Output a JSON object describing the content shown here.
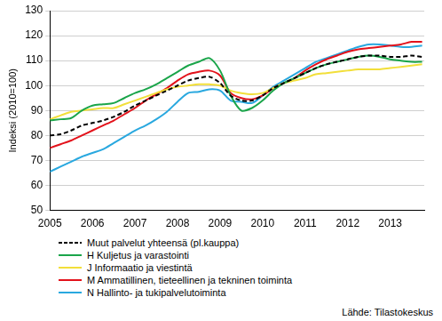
{
  "chart_data": {
    "type": "line",
    "y_label": "Indeksi (2010=100)",
    "annotations": [
      "Lähde: Tilastokeskus"
    ],
    "legend": "bottom",
    "grid": "y",
    "xlim": [
      2005,
      2013.8
    ],
    "xticks": [
      2005,
      2006,
      2007,
      2008,
      2009,
      2010,
      2011,
      2012,
      2013
    ],
    "ylim": [
      50,
      130
    ],
    "yticks": [
      50,
      60,
      70,
      80,
      90,
      100,
      110,
      120,
      130
    ],
    "x": [
      2005,
      2005.25,
      2005.5,
      2005.75,
      2006,
      2006.25,
      2006.5,
      2006.75,
      2007,
      2007.25,
      2007.5,
      2007.75,
      2008,
      2008.25,
      2008.5,
      2008.75,
      2009,
      2009.25,
      2009.5,
      2009.75,
      2010,
      2010.25,
      2010.5,
      2010.75,
      2011,
      2011.25,
      2011.5,
      2011.75,
      2012,
      2012.25,
      2012.5,
      2012.75,
      2013,
      2013.25,
      2013.5,
      2013.75
    ],
    "series": [
      {
        "name": "Muut palvelut yhteensä (pl.kauppa)",
        "color": "#000000",
        "line_style": "dashed",
        "values": [
          80,
          80.5,
          82,
          84,
          85,
          86,
          87.5,
          89.5,
          92,
          94,
          96,
          98,
          100,
          102,
          103,
          103.5,
          101,
          96,
          94,
          94,
          96,
          99,
          101,
          103,
          105,
          107,
          108.5,
          109.5,
          110.5,
          111.5,
          112,
          112,
          111.5,
          111.5,
          112,
          111.5
        ]
      },
      {
        "name": "H Kuljetus ja varastointi",
        "color": "#1aa54a",
        "line_style": "solid",
        "values": [
          86,
          86.5,
          87,
          90,
          92,
          92.5,
          93,
          95,
          97,
          98.5,
          100.5,
          103,
          105.5,
          108,
          109.5,
          111,
          106,
          96,
          90,
          91,
          94,
          98,
          101,
          103,
          105,
          107,
          108.5,
          109.5,
          110.5,
          111.5,
          112,
          111.5,
          110.5,
          110,
          109.5,
          109.5
        ]
      },
      {
        "name": "J Informaatio ja viestintä",
        "color": "#f2df3a",
        "line_style": "solid",
        "values": [
          86.5,
          88,
          89.5,
          90,
          90.5,
          91,
          91,
          92.5,
          94,
          95.5,
          97,
          98.5,
          99.5,
          100,
          100.5,
          100.5,
          100,
          98,
          97,
          96.5,
          97,
          99,
          101,
          102,
          103,
          104.5,
          105,
          105.5,
          106,
          106.5,
          106.5,
          106.5,
          107,
          107.5,
          108,
          108.5
        ]
      },
      {
        "name": "M Ammatillinen, tieteellinen ja tekninen toiminta",
        "color": "#e3121b",
        "line_style": "solid",
        "values": [
          75,
          76.5,
          78,
          80,
          82,
          84,
          86,
          88.5,
          91,
          94,
          96.5,
          99,
          102,
          104.5,
          105.5,
          106,
          104,
          97,
          95,
          94.5,
          96,
          99,
          101,
          103,
          106,
          108.5,
          110.5,
          112,
          113.5,
          114.5,
          115,
          115.5,
          116,
          116.5,
          117.5,
          117.5
        ]
      },
      {
        "name": "N Hallinto- ja tukipalvelutoiminta",
        "color": "#29a8df",
        "line_style": "solid",
        "values": [
          65.5,
          67.5,
          69.5,
          71.5,
          73,
          74.5,
          77,
          79.5,
          82,
          84,
          86.5,
          89.5,
          93.5,
          97,
          97.5,
          98.5,
          98,
          94,
          93.5,
          93,
          96,
          99.5,
          102,
          104.5,
          107,
          109.5,
          111,
          112.5,
          114,
          115.5,
          116.5,
          116.5,
          116,
          115.5,
          115.5,
          116
        ]
      }
    ]
  }
}
